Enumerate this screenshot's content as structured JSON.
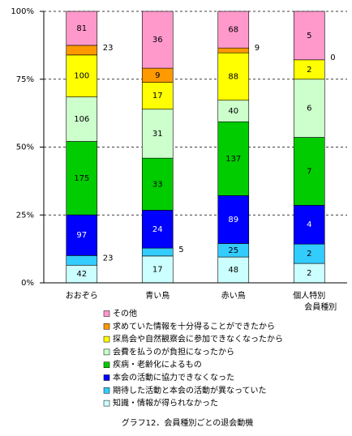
{
  "chart_data": {
    "type": "stacked_percent_bar",
    "title": "グラフ12．会員種別ごとの退会動機",
    "x_label": "会員種別",
    "categories": [
      "おおぞら",
      "青い鳥",
      "赤い鳥",
      "個人特別"
    ],
    "series": [
      {
        "name": "知識・情報が得られなかった",
        "color": "#ccffff",
        "values": [
          42,
          17,
          48,
          2
        ]
      },
      {
        "name": "期待した活動と本会の活動が異なっていた",
        "color": "#33ccff",
        "values": [
          23,
          5,
          25,
          2
        ]
      },
      {
        "name": "本会の活動に協力できなくなった",
        "color": "#0000ff",
        "values": [
          97,
          24,
          89,
          4
        ]
      },
      {
        "name": "疾病・老齢化によるもの",
        "color": "#00cc00",
        "values": [
          175,
          33,
          137,
          7
        ]
      },
      {
        "name": "会費を払うのが負担になったから",
        "color": "#ccffcc",
        "values": [
          106,
          31,
          40,
          6
        ]
      },
      {
        "name": "探鳥会や自然観察会に参加できなくなったから",
        "color": "#ffff00",
        "values": [
          100,
          17,
          88,
          2
        ]
      },
      {
        "name": "求めていた情報を十分得ることができたから",
        "color": "#ff9900",
        "values": [
          23,
          9,
          9,
          0
        ]
      },
      {
        "name": "その他",
        "color": "#ff99cc",
        "values": [
          81,
          36,
          68,
          5
        ]
      }
    ],
    "ylim": [
      0,
      100
    ],
    "yticks": [
      {
        "value": 0,
        "label": "0%"
      },
      {
        "value": 25,
        "label": "25%"
      },
      {
        "value": 50,
        "label": "50%"
      },
      {
        "value": 75,
        "label": "75%"
      },
      {
        "value": 100,
        "label": "100%"
      }
    ],
    "grid": true,
    "legend": "bottom"
  }
}
